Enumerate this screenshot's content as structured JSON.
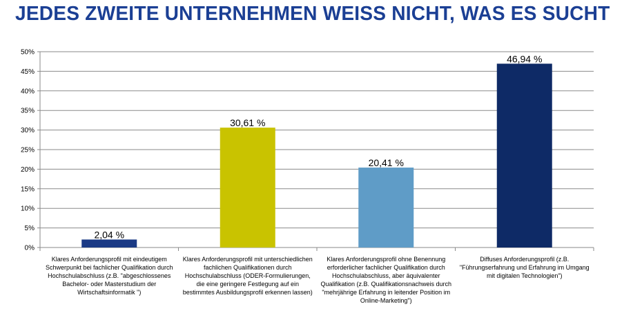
{
  "title": "JEDES ZWEITE UNTERNEHMEN WEISS NICHT, WAS ES SUCHT",
  "chart_data": {
    "type": "bar",
    "title": "JEDES ZWEITE UNTERNEHMEN WEISS NICHT, WAS ES SUCHT",
    "xlabel": "",
    "ylabel": "",
    "ylim": [
      0,
      50
    ],
    "yticks": [
      "0%",
      "5%",
      "10%",
      "15%",
      "20%",
      "25%",
      "30%",
      "35%",
      "40%",
      "45%",
      "50%"
    ],
    "grid": true,
    "categories": [
      "Klares Anforderungsprofil mit eindeutigem Schwerpunkt bei fachlicher Qualifikation durch Hochschulabschluss (z.B. \"abgeschlossenes Bachelor- oder Masterstudium der Wirtschaftsinformatik \")",
      "Klares Anforderungsprofil mit unterschiedlichen fachlichen Qualifikationen durch Hochschulabschluss (ODER-Formulierungen, die eine geringere Festlegung auf ein bestimmtes Ausbildungsprofil erkennen lassen)",
      "Klares Anforderungsprofil ohne Benennung erforderlicher fachlicher Qualifikation durch Hochschulabschluss, aber äquivalenter Qualifikation (z.B. Qualifikationsnachweis durch \"mehrjährige Erfahrung in leitender Position im Online-Marketing\")",
      "Diffuses Anforderungsprofil (z.B. \"Führungserfahrung und Erfahrung im Umgang mit digitalen Technologien\")"
    ],
    "values": [
      2.04,
      30.61,
      20.41,
      46.94
    ],
    "value_labels": [
      "2,04 %",
      "30,61 %",
      "20,41 %",
      "46,94 %"
    ],
    "colors": [
      "#1b3a85",
      "#c9c300",
      "#5f9cc7",
      "#0e2a66"
    ]
  }
}
